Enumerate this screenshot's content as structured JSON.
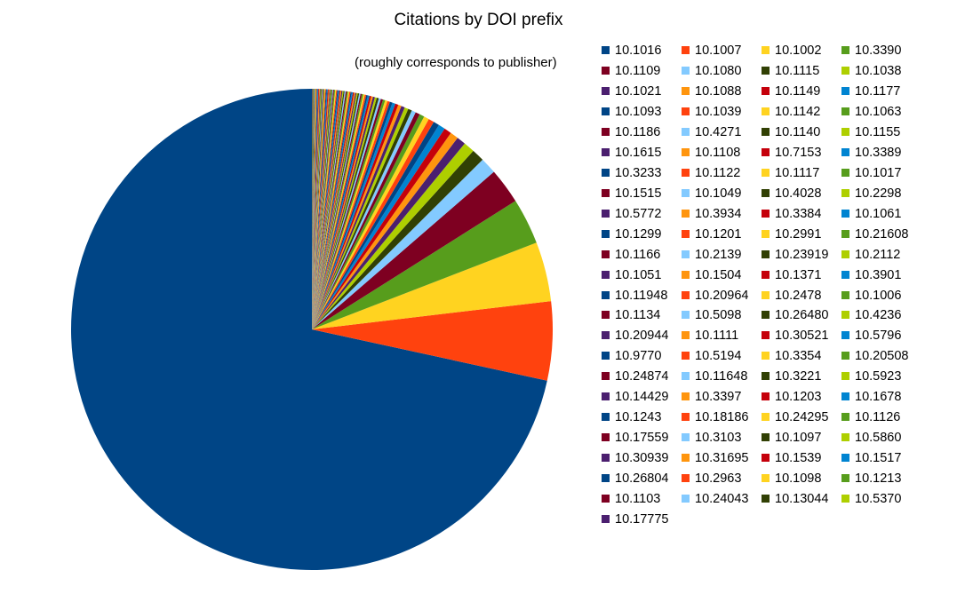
{
  "chart_data": {
    "type": "pie",
    "title": "Citations by DOI prefix",
    "subtitle": "(roughly corresponds to publisher)",
    "legend_placement": "right",
    "palette": [
      "#004586",
      "#ff420e",
      "#ffd320",
      "#579d1c",
      "#7e0021",
      "#83caff",
      "#314004",
      "#aecf00",
      "#4b1f6f",
      "#ff950e",
      "#c5000b",
      "#0084d1"
    ],
    "labels": [
      "10.1016",
      "10.1007",
      "10.1002",
      "10.3390",
      "10.1109",
      "10.1080",
      "10.1115",
      "10.1038",
      "10.1021",
      "10.1088",
      "10.1149",
      "10.1177",
      "10.1093",
      "10.1039",
      "10.1142",
      "10.1063",
      "10.1186",
      "10.4271",
      "10.1140",
      "10.1155",
      "10.1615",
      "10.1108",
      "10.7153",
      "10.3389",
      "10.3233",
      "10.1122",
      "10.1117",
      "10.1017",
      "10.1515",
      "10.1049",
      "10.4028",
      "10.2298",
      "10.5772",
      "10.3934",
      "10.3384",
      "10.1061",
      "10.1299",
      "10.1201",
      "10.2991",
      "10.21608",
      "10.1166",
      "10.2139",
      "10.23919",
      "10.2112",
      "10.1051",
      "10.1504",
      "10.1371",
      "10.3901",
      "10.11948",
      "10.20964",
      "10.2478",
      "10.1006",
      "10.1134",
      "10.5098",
      "10.26480",
      "10.4236",
      "10.20944",
      "10.1111",
      "10.30521",
      "10.5796",
      "10.9770",
      "10.5194",
      "10.3354",
      "10.20508",
      "10.24874",
      "10.11648",
      "10.3221",
      "10.5923",
      "10.14429",
      "10.3397",
      "10.1203",
      "10.1678",
      "10.1243",
      "10.18186",
      "10.24295",
      "10.1126",
      "10.17559",
      "10.3103",
      "10.1097",
      "10.5860",
      "10.30939",
      "10.31695",
      "10.1539",
      "10.1517",
      "10.26804",
      "10.2963",
      "10.1098",
      "10.1213",
      "10.1103",
      "10.24043",
      "10.13044",
      "10.5370",
      "10.17775"
    ],
    "values_percent": [
      71.7,
      5.3,
      4.0,
      3.1,
      2.4,
      1.1,
      0.85,
      0.75,
      0.6,
      0.55,
      0.5,
      0.45,
      0.4,
      0.38,
      0.35,
      0.33,
      0.3,
      0.28,
      0.26,
      0.25,
      0.24,
      0.22,
      0.21,
      0.2,
      0.18,
      0.17,
      0.16,
      0.15,
      0.15,
      0.14,
      0.14,
      0.13,
      0.13,
      0.12,
      0.12,
      0.11,
      0.11,
      0.1,
      0.1,
      0.1,
      0.09,
      0.09,
      0.09,
      0.09,
      0.08,
      0.08,
      0.08,
      0.08,
      0.08,
      0.08,
      0.08,
      0.08,
      0.08,
      0.08,
      0.07,
      0.07,
      0.07,
      0.07,
      0.07,
      0.07,
      0.07,
      0.07,
      0.07,
      0.07,
      0.06,
      0.06,
      0.06,
      0.06,
      0.06,
      0.06,
      0.06,
      0.06,
      0.06,
      0.06,
      0.05,
      0.05,
      0.05,
      0.05,
      0.05,
      0.05,
      0.05,
      0.05,
      0.05,
      0.05,
      0.05,
      0.04,
      0.04,
      0.04,
      0.04,
      0.04,
      0.04,
      0.04,
      0.04
    ]
  }
}
